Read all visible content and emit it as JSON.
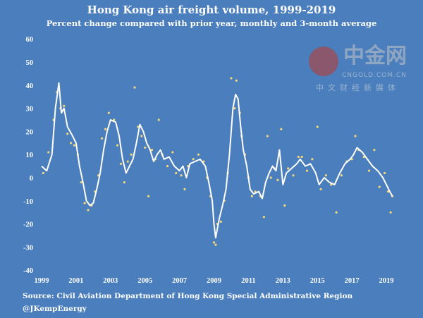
{
  "chart_data": {
    "type": "line",
    "title": "Hong Kong air freight volume, 1999-2019",
    "subtitle": "Percent change compared with prior year, monthly and 3-month average",
    "xlabel": "",
    "ylabel": "",
    "ylim": [
      -40,
      60
    ],
    "xlim": [
      1999,
      2019.4
    ],
    "yticks": [
      "60",
      "50",
      "40",
      "30",
      "20",
      "10",
      "0",
      "-10",
      "-20",
      "-30",
      "-40"
    ],
    "ytick_values": [
      60,
      50,
      40,
      30,
      20,
      10,
      0,
      -10,
      -20,
      -30,
      -40
    ],
    "xticks": [
      "1999",
      "2001",
      "2003",
      "2005",
      "2007",
      "2009",
      "2011",
      "2013",
      "2015",
      "2017",
      "2019"
    ],
    "xtick_values": [
      1999,
      2001,
      2003,
      2005,
      2007,
      2009,
      2011,
      2013,
      2015,
      2017,
      2019
    ],
    "grid": false,
    "series": [
      {
        "name": "3-month average",
        "kind": "line",
        "color": "#ffffff",
        "points": [
          [
            1999.0,
            5
          ],
          [
            1999.3,
            3
          ],
          [
            1999.6,
            10
          ],
          [
            1999.8,
            30
          ],
          [
            2000.0,
            41
          ],
          [
            2000.15,
            28
          ],
          [
            2000.3,
            30
          ],
          [
            2000.5,
            22
          ],
          [
            2000.8,
            18
          ],
          [
            2001.0,
            15
          ],
          [
            2001.2,
            5
          ],
          [
            2001.4,
            -2
          ],
          [
            2001.6,
            -10
          ],
          [
            2001.8,
            -12
          ],
          [
            2002.0,
            -11
          ],
          [
            2002.2,
            -5
          ],
          [
            2002.4,
            2
          ],
          [
            2002.6,
            12
          ],
          [
            2002.8,
            20
          ],
          [
            2003.0,
            25
          ],
          [
            2003.3,
            24
          ],
          [
            2003.5,
            18
          ],
          [
            2003.7,
            8
          ],
          [
            2003.9,
            2
          ],
          [
            2004.1,
            5
          ],
          [
            2004.3,
            8
          ],
          [
            2004.5,
            15
          ],
          [
            2004.7,
            23
          ],
          [
            2004.9,
            20
          ],
          [
            2005.1,
            15
          ],
          [
            2005.3,
            12
          ],
          [
            2005.5,
            7
          ],
          [
            2005.7,
            10
          ],
          [
            2005.9,
            12
          ],
          [
            2006.1,
            8
          ],
          [
            2006.4,
            9
          ],
          [
            2006.7,
            5
          ],
          [
            2007.0,
            3
          ],
          [
            2007.2,
            5
          ],
          [
            2007.4,
            0
          ],
          [
            2007.6,
            6
          ],
          [
            2007.9,
            7
          ],
          [
            2008.2,
            8
          ],
          [
            2008.5,
            5
          ],
          [
            2008.7,
            -2
          ],
          [
            2008.9,
            -10
          ],
          [
            2009.0,
            -20
          ],
          [
            2009.1,
            -26
          ],
          [
            2009.3,
            -18
          ],
          [
            2009.5,
            -12
          ],
          [
            2009.7,
            -5
          ],
          [
            2009.9,
            10
          ],
          [
            2010.1,
            30
          ],
          [
            2010.25,
            36
          ],
          [
            2010.4,
            34
          ],
          [
            2010.55,
            22
          ],
          [
            2010.7,
            12
          ],
          [
            2010.9,
            5
          ],
          [
            2011.1,
            -5
          ],
          [
            2011.3,
            -7
          ],
          [
            2011.6,
            -6
          ],
          [
            2011.8,
            -9
          ],
          [
            2012.0,
            -2
          ],
          [
            2012.2,
            2
          ],
          [
            2012.4,
            5
          ],
          [
            2012.6,
            3
          ],
          [
            2012.8,
            12
          ],
          [
            2013.0,
            -3
          ],
          [
            2013.2,
            2
          ],
          [
            2013.5,
            4
          ],
          [
            2013.8,
            6
          ],
          [
            2014.0,
            8
          ],
          [
            2014.3,
            5
          ],
          [
            2014.6,
            6
          ],
          [
            2014.9,
            2
          ],
          [
            2015.1,
            -3
          ],
          [
            2015.4,
            0
          ],
          [
            2015.7,
            -2
          ],
          [
            2016.0,
            -3
          ],
          [
            2016.3,
            2
          ],
          [
            2016.6,
            6
          ],
          [
            2016.9,
            8
          ],
          [
            2017.1,
            10
          ],
          [
            2017.3,
            13
          ],
          [
            2017.6,
            11
          ],
          [
            2017.9,
            8
          ],
          [
            2018.2,
            5
          ],
          [
            2018.5,
            3
          ],
          [
            2018.8,
            0
          ],
          [
            2019.0,
            -3
          ],
          [
            2019.2,
            -6
          ],
          [
            2019.35,
            -8
          ]
        ]
      },
      {
        "name": "monthly",
        "kind": "scatter",
        "color": "#f2d779",
        "points": [
          [
            1999.1,
            2
          ],
          [
            1999.4,
            11
          ],
          [
            1999.7,
            25
          ],
          [
            1999.9,
            37
          ],
          [
            2000.1,
            30
          ],
          [
            2000.3,
            31
          ],
          [
            2000.5,
            19
          ],
          [
            2000.7,
            15
          ],
          [
            2000.9,
            14
          ],
          [
            2001.1,
            10
          ],
          [
            2001.3,
            -2
          ],
          [
            2001.5,
            -11
          ],
          [
            2001.7,
            -14
          ],
          [
            2001.9,
            -12
          ],
          [
            2002.1,
            -6
          ],
          [
            2002.3,
            1
          ],
          [
            2002.5,
            17
          ],
          [
            2002.7,
            21
          ],
          [
            2002.9,
            28
          ],
          [
            2003.2,
            25
          ],
          [
            2003.4,
            14
          ],
          [
            2003.6,
            6
          ],
          [
            2003.8,
            -2
          ],
          [
            2004.0,
            7
          ],
          [
            2004.2,
            10
          ],
          [
            2004.4,
            39
          ],
          [
            2004.6,
            22
          ],
          [
            2004.8,
            18
          ],
          [
            2005.0,
            13
          ],
          [
            2005.2,
            -8
          ],
          [
            2005.4,
            12
          ],
          [
            2005.6,
            8
          ],
          [
            2005.8,
            25
          ],
          [
            2006.0,
            10
          ],
          [
            2006.3,
            5
          ],
          [
            2006.6,
            11
          ],
          [
            2006.8,
            2
          ],
          [
            2007.1,
            1
          ],
          [
            2007.3,
            -5
          ],
          [
            2007.5,
            5
          ],
          [
            2007.8,
            8
          ],
          [
            2008.1,
            10
          ],
          [
            2008.4,
            7
          ],
          [
            2008.6,
            0
          ],
          [
            2008.8,
            -8
          ],
          [
            2009.0,
            -28
          ],
          [
            2009.1,
            -29
          ],
          [
            2009.2,
            -20
          ],
          [
            2009.4,
            -19
          ],
          [
            2009.6,
            -10
          ],
          [
            2009.8,
            2
          ],
          [
            2010.0,
            43
          ],
          [
            2010.2,
            30
          ],
          [
            2010.3,
            42
          ],
          [
            2010.5,
            28
          ],
          [
            2010.6,
            18
          ],
          [
            2010.8,
            10
          ],
          [
            2011.0,
            0
          ],
          [
            2011.2,
            -8
          ],
          [
            2011.4,
            -6
          ],
          [
            2011.7,
            -8
          ],
          [
            2011.9,
            -17
          ],
          [
            2012.1,
            18
          ],
          [
            2012.3,
            0
          ],
          [
            2012.5,
            4
          ],
          [
            2012.7,
            -1
          ],
          [
            2012.9,
            21
          ],
          [
            2013.1,
            -12
          ],
          [
            2013.3,
            4
          ],
          [
            2013.6,
            1
          ],
          [
            2013.9,
            9
          ],
          [
            2014.1,
            9
          ],
          [
            2014.4,
            3
          ],
          [
            2014.7,
            8
          ],
          [
            2015.0,
            22
          ],
          [
            2015.2,
            -5
          ],
          [
            2015.5,
            1
          ],
          [
            2015.8,
            -3
          ],
          [
            2016.1,
            -15
          ],
          [
            2016.4,
            1
          ],
          [
            2016.7,
            7
          ],
          [
            2017.0,
            8
          ],
          [
            2017.2,
            18
          ],
          [
            2017.4,
            12
          ],
          [
            2017.7,
            9
          ],
          [
            2018.0,
            3
          ],
          [
            2018.3,
            12
          ],
          [
            2018.6,
            -4
          ],
          [
            2018.9,
            2
          ],
          [
            2019.1,
            -6
          ],
          [
            2019.25,
            -15
          ],
          [
            2019.35,
            -8
          ]
        ]
      }
    ]
  },
  "source": "Source: Civil Aviation Department of Hong Kong Special Administrative Region",
  "handle": "@JKempEnergy",
  "watermark": {
    "logo": "中金网",
    "url": "CNGOLD.COM.CN",
    "tagline": "中文财经新媒体"
  }
}
